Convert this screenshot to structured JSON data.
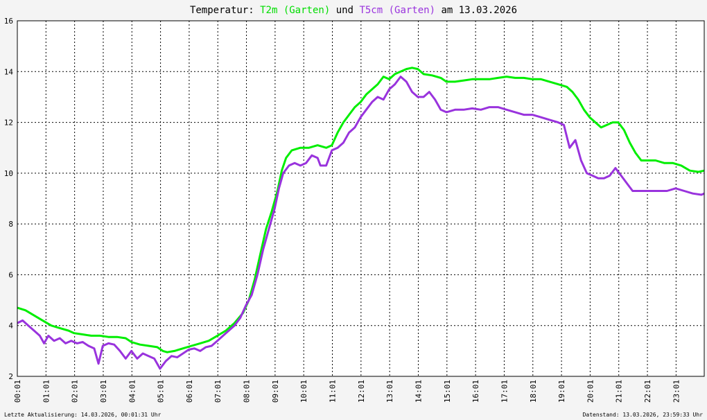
{
  "chart_data": {
    "type": "line",
    "title": {
      "prefix": "Temperatur:",
      "series1_label": "T2m (Garten)",
      "connector": "und",
      "series2_label": "T5cm (Garten)",
      "suffix": "am 13.03.2026"
    },
    "ylim": [
      2,
      16
    ],
    "yticks": [
      "2",
      "4",
      "6",
      "8",
      "10",
      "12",
      "14",
      "16"
    ],
    "xlim": [
      0.0167,
      24
    ],
    "xticks": [
      "00:01",
      "01:01",
      "02:01",
      "03:01",
      "04:01",
      "05:01",
      "06:01",
      "07:01",
      "08:01",
      "09:01",
      "10:01",
      "11:01",
      "12:01",
      "13:01",
      "14:01",
      "15:01",
      "16:01",
      "17:01",
      "18:01",
      "19:01",
      "20:01",
      "21:01",
      "22:01",
      "23:01"
    ],
    "grid": true,
    "series": [
      {
        "name": "T2m (Garten)",
        "color": "#00ee00",
        "points": [
          [
            0.02,
            4.7
          ],
          [
            0.3,
            4.6
          ],
          [
            0.6,
            4.4
          ],
          [
            0.9,
            4.2
          ],
          [
            1.2,
            4.0
          ],
          [
            1.5,
            3.9
          ],
          [
            1.8,
            3.8
          ],
          [
            2.0,
            3.7
          ],
          [
            2.3,
            3.65
          ],
          [
            2.6,
            3.6
          ],
          [
            2.9,
            3.6
          ],
          [
            3.2,
            3.55
          ],
          [
            3.5,
            3.55
          ],
          [
            3.8,
            3.5
          ],
          [
            4.0,
            3.35
          ],
          [
            4.3,
            3.25
          ],
          [
            4.6,
            3.2
          ],
          [
            4.9,
            3.15
          ],
          [
            5.1,
            3.0
          ],
          [
            5.25,
            2.95
          ],
          [
            5.5,
            3.0
          ],
          [
            5.8,
            3.1
          ],
          [
            6.1,
            3.2
          ],
          [
            6.4,
            3.3
          ],
          [
            6.7,
            3.4
          ],
          [
            7.0,
            3.6
          ],
          [
            7.3,
            3.8
          ],
          [
            7.6,
            4.1
          ],
          [
            7.9,
            4.5
          ],
          [
            8.1,
            5.0
          ],
          [
            8.3,
            5.8
          ],
          [
            8.5,
            6.8
          ],
          [
            8.7,
            7.8
          ],
          [
            8.9,
            8.5
          ],
          [
            9.1,
            9.3
          ],
          [
            9.25,
            10.1
          ],
          [
            9.4,
            10.6
          ],
          [
            9.6,
            10.9
          ],
          [
            9.9,
            11.0
          ],
          [
            10.2,
            11.0
          ],
          [
            10.5,
            11.1
          ],
          [
            10.8,
            11.0
          ],
          [
            11.0,
            11.1
          ],
          [
            11.2,
            11.6
          ],
          [
            11.4,
            12.0
          ],
          [
            11.6,
            12.3
          ],
          [
            11.8,
            12.6
          ],
          [
            12.0,
            12.8
          ],
          [
            12.2,
            13.1
          ],
          [
            12.4,
            13.3
          ],
          [
            12.6,
            13.5
          ],
          [
            12.8,
            13.8
          ],
          [
            13.0,
            13.7
          ],
          [
            13.2,
            13.9
          ],
          [
            13.4,
            14.0
          ],
          [
            13.6,
            14.1
          ],
          [
            13.8,
            14.15
          ],
          [
            14.0,
            14.1
          ],
          [
            14.2,
            13.9
          ],
          [
            14.5,
            13.85
          ],
          [
            14.8,
            13.75
          ],
          [
            15.0,
            13.6
          ],
          [
            15.3,
            13.6
          ],
          [
            15.6,
            13.65
          ],
          [
            15.9,
            13.7
          ],
          [
            16.2,
            13.7
          ],
          [
            16.5,
            13.7
          ],
          [
            16.8,
            13.75
          ],
          [
            17.1,
            13.8
          ],
          [
            17.4,
            13.75
          ],
          [
            17.7,
            13.75
          ],
          [
            18.0,
            13.7
          ],
          [
            18.3,
            13.7
          ],
          [
            18.6,
            13.6
          ],
          [
            18.9,
            13.5
          ],
          [
            19.2,
            13.4
          ],
          [
            19.4,
            13.2
          ],
          [
            19.6,
            12.9
          ],
          [
            19.8,
            12.5
          ],
          [
            20.0,
            12.2
          ],
          [
            20.2,
            12.0
          ],
          [
            20.4,
            11.8
          ],
          [
            20.6,
            11.9
          ],
          [
            20.8,
            12.0
          ],
          [
            21.0,
            12.0
          ],
          [
            21.2,
            11.7
          ],
          [
            21.4,
            11.2
          ],
          [
            21.6,
            10.8
          ],
          [
            21.8,
            10.5
          ],
          [
            22.0,
            10.5
          ],
          [
            22.3,
            10.5
          ],
          [
            22.6,
            10.4
          ],
          [
            22.9,
            10.4
          ],
          [
            23.2,
            10.3
          ],
          [
            23.5,
            10.1
          ],
          [
            23.8,
            10.05
          ],
          [
            24.0,
            10.1
          ]
        ]
      },
      {
        "name": "T5cm (Garten)",
        "color": "#9933dd",
        "points": [
          [
            0.02,
            4.1
          ],
          [
            0.2,
            4.2
          ],
          [
            0.4,
            4.0
          ],
          [
            0.6,
            3.8
          ],
          [
            0.8,
            3.6
          ],
          [
            0.95,
            3.3
          ],
          [
            1.1,
            3.6
          ],
          [
            1.3,
            3.4
          ],
          [
            1.5,
            3.5
          ],
          [
            1.7,
            3.3
          ],
          [
            1.9,
            3.4
          ],
          [
            2.1,
            3.3
          ],
          [
            2.3,
            3.35
          ],
          [
            2.5,
            3.2
          ],
          [
            2.7,
            3.1
          ],
          [
            2.85,
            2.5
          ],
          [
            3.0,
            3.2
          ],
          [
            3.2,
            3.3
          ],
          [
            3.4,
            3.25
          ],
          [
            3.6,
            3.0
          ],
          [
            3.8,
            2.7
          ],
          [
            4.0,
            3.0
          ],
          [
            4.2,
            2.7
          ],
          [
            4.4,
            2.9
          ],
          [
            4.6,
            2.8
          ],
          [
            4.8,
            2.7
          ],
          [
            5.0,
            2.3
          ],
          [
            5.2,
            2.6
          ],
          [
            5.4,
            2.8
          ],
          [
            5.6,
            2.75
          ],
          [
            5.8,
            2.9
          ],
          [
            6.0,
            3.05
          ],
          [
            6.2,
            3.1
          ],
          [
            6.4,
            3.0
          ],
          [
            6.6,
            3.15
          ],
          [
            6.8,
            3.2
          ],
          [
            7.0,
            3.4
          ],
          [
            7.2,
            3.6
          ],
          [
            7.4,
            3.8
          ],
          [
            7.6,
            4.0
          ],
          [
            7.8,
            4.3
          ],
          [
            8.0,
            4.8
          ],
          [
            8.2,
            5.2
          ],
          [
            8.4,
            6.0
          ],
          [
            8.6,
            7.0
          ],
          [
            8.8,
            7.8
          ],
          [
            9.0,
            8.6
          ],
          [
            9.15,
            9.4
          ],
          [
            9.3,
            10.0
          ],
          [
            9.5,
            10.3
          ],
          [
            9.7,
            10.4
          ],
          [
            9.9,
            10.3
          ],
          [
            10.1,
            10.4
          ],
          [
            10.3,
            10.7
          ],
          [
            10.5,
            10.6
          ],
          [
            10.6,
            10.3
          ],
          [
            10.8,
            10.3
          ],
          [
            11.0,
            10.9
          ],
          [
            11.2,
            11.0
          ],
          [
            11.4,
            11.2
          ],
          [
            11.6,
            11.6
          ],
          [
            11.8,
            11.8
          ],
          [
            12.0,
            12.2
          ],
          [
            12.2,
            12.5
          ],
          [
            12.4,
            12.8
          ],
          [
            12.6,
            13.0
          ],
          [
            12.8,
            12.9
          ],
          [
            13.0,
            13.3
          ],
          [
            13.2,
            13.5
          ],
          [
            13.4,
            13.8
          ],
          [
            13.6,
            13.6
          ],
          [
            13.8,
            13.2
          ],
          [
            14.0,
            13.0
          ],
          [
            14.2,
            13.0
          ],
          [
            14.4,
            13.2
          ],
          [
            14.6,
            12.9
          ],
          [
            14.8,
            12.5
          ],
          [
            15.0,
            12.4
          ],
          [
            15.3,
            12.5
          ],
          [
            15.6,
            12.5
          ],
          [
            15.9,
            12.55
          ],
          [
            16.2,
            12.5
          ],
          [
            16.5,
            12.6
          ],
          [
            16.8,
            12.6
          ],
          [
            17.1,
            12.5
          ],
          [
            17.4,
            12.4
          ],
          [
            17.7,
            12.3
          ],
          [
            18.0,
            12.3
          ],
          [
            18.3,
            12.2
          ],
          [
            18.6,
            12.1
          ],
          [
            18.9,
            12.0
          ],
          [
            19.1,
            11.9
          ],
          [
            19.3,
            11.0
          ],
          [
            19.5,
            11.3
          ],
          [
            19.7,
            10.5
          ],
          [
            19.9,
            10.0
          ],
          [
            20.1,
            9.9
          ],
          [
            20.3,
            9.8
          ],
          [
            20.5,
            9.8
          ],
          [
            20.7,
            9.9
          ],
          [
            20.9,
            10.2
          ],
          [
            21.1,
            9.9
          ],
          [
            21.3,
            9.6
          ],
          [
            21.5,
            9.3
          ],
          [
            21.8,
            9.3
          ],
          [
            22.1,
            9.3
          ],
          [
            22.4,
            9.3
          ],
          [
            22.7,
            9.3
          ],
          [
            23.0,
            9.4
          ],
          [
            23.3,
            9.3
          ],
          [
            23.6,
            9.2
          ],
          [
            23.9,
            9.15
          ],
          [
            24.0,
            9.2
          ]
        ]
      }
    ]
  },
  "footer": {
    "left": "Letzte Aktualisierung: 14.03.2026, 00:01:31 Uhr",
    "right": "Datenstand: 13.03.2026, 23:59:33 Uhr"
  }
}
